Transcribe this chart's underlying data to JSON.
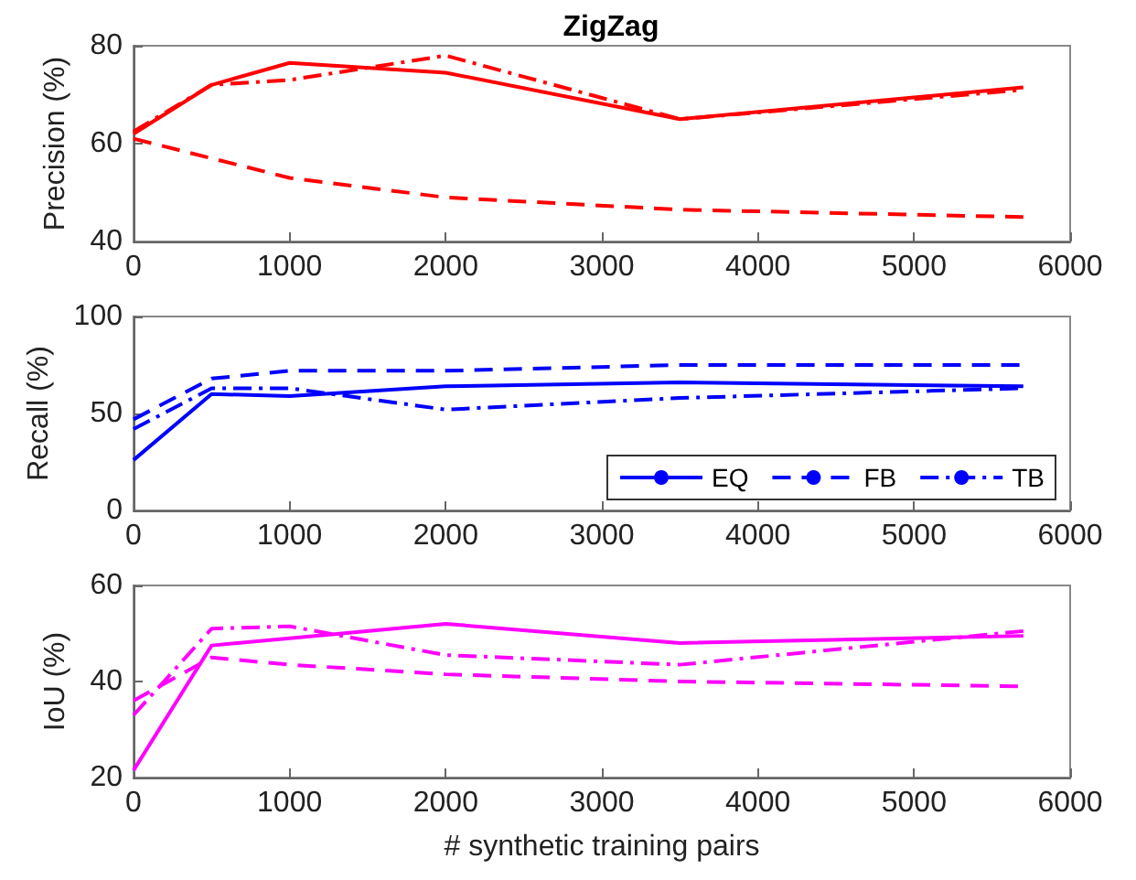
{
  "chart_data": [
    {
      "type": "line",
      "title": "ZigZag",
      "ylabel": "Precision (%)",
      "x": [
        0,
        500,
        1000,
        2000,
        3500,
        5700
      ],
      "xlim": [
        0,
        6000
      ],
      "xticks": [
        0,
        1000,
        2000,
        3000,
        4000,
        5000,
        6000
      ],
      "ylim": [
        40,
        80
      ],
      "yticks": [
        40,
        60,
        80
      ],
      "series": [
        {
          "color": "#ff0000",
          "line_style": "solid",
          "values": [
            62,
            72,
            76.5,
            74.5,
            65,
            71.5
          ]
        },
        {
          "color": "#ff0000",
          "line_style": "dashed",
          "values": [
            61,
            57,
            53,
            49,
            46.5,
            45
          ]
        },
        {
          "color": "#ff0000",
          "line_style": "dashdot",
          "values": [
            62.5,
            72,
            73,
            78,
            65,
            71
          ]
        }
      ]
    },
    {
      "type": "line",
      "ylabel": "Recall (%)",
      "x": [
        0,
        500,
        1000,
        2000,
        3500,
        5700
      ],
      "xlim": [
        0,
        6000
      ],
      "xticks": [
        0,
        1000,
        2000,
        3000,
        4000,
        5000,
        6000
      ],
      "ylim": [
        0,
        100
      ],
      "yticks": [
        0,
        50,
        100
      ],
      "legend": "bottom right",
      "series": [
        {
          "name": "EQ",
          "color": "#0000ff",
          "line_style": "solid",
          "values": [
            26,
            60,
            59,
            64,
            66,
            64
          ]
        },
        {
          "name": "FB",
          "color": "#0000ff",
          "line_style": "dashed",
          "values": [
            47,
            68,
            72,
            72,
            75,
            75
          ]
        },
        {
          "name": "TB",
          "color": "#0000ff",
          "line_style": "dashdot",
          "values": [
            42,
            63,
            63,
            52,
            58,
            63
          ]
        }
      ]
    },
    {
      "type": "line",
      "ylabel": "IoU (%)",
      "xlabel": "# synthetic training pairs",
      "x": [
        0,
        500,
        1000,
        2000,
        3500,
        5700
      ],
      "xlim": [
        0,
        6000
      ],
      "xticks": [
        0,
        1000,
        2000,
        3000,
        4000,
        5000,
        6000
      ],
      "ylim": [
        20,
        60
      ],
      "yticks": [
        20,
        40,
        60
      ],
      "series": [
        {
          "color": "#ff00ff",
          "line_style": "solid",
          "values": [
            21.5,
            47.5,
            49,
            52,
            48,
            49.5
          ]
        },
        {
          "color": "#ff00ff",
          "line_style": "dashed",
          "values": [
            36,
            45,
            43.5,
            41.5,
            40,
            39
          ]
        },
        {
          "color": "#ff00ff",
          "line_style": "dashdot",
          "values": [
            33,
            51,
            51.5,
            45.5,
            43.5,
            50.5
          ]
        }
      ]
    }
  ]
}
